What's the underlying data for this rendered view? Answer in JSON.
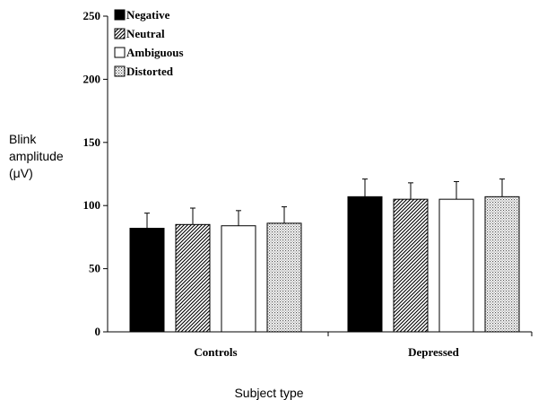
{
  "chart_data": {
    "type": "bar",
    "categories": [
      "Controls",
      "Depressed"
    ],
    "series": [
      {
        "name": "Negative",
        "values": [
          82,
          107
        ],
        "errors": [
          12,
          14
        ],
        "fill": "solid-black"
      },
      {
        "name": "Neutral",
        "values": [
          85,
          105
        ],
        "errors": [
          13,
          13
        ],
        "fill": "diagonal-hatch"
      },
      {
        "name": "Ambiguous",
        "values": [
          84,
          105
        ],
        "errors": [
          12,
          14
        ],
        "fill": "white"
      },
      {
        "name": "Distorted",
        "values": [
          86,
          107
        ],
        "errors": [
          13,
          14
        ],
        "fill": "fine-dots"
      }
    ],
    "ylabel_lines": [
      "Blink",
      "amplitude",
      "(μV)"
    ],
    "xlabel": "Subject type",
    "ylim": [
      0,
      250
    ],
    "yticks": [
      0,
      50,
      100,
      150,
      200,
      250
    ],
    "legend_position": "top-left",
    "grid": false
  }
}
